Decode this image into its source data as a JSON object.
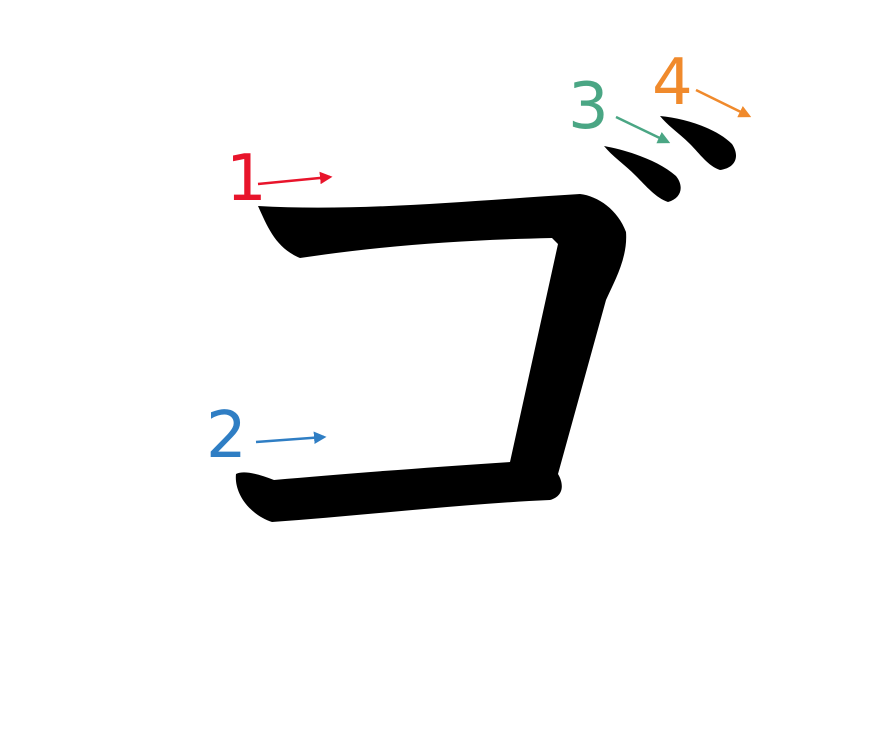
{
  "strokes": [
    {
      "number": "1",
      "color": "#e8142b"
    },
    {
      "number": "2",
      "color": "#2f7ec4"
    },
    {
      "number": "3",
      "color": "#4aa684"
    },
    {
      "number": "4",
      "color": "#f08a2c"
    }
  ],
  "glyph_color": "#000000"
}
